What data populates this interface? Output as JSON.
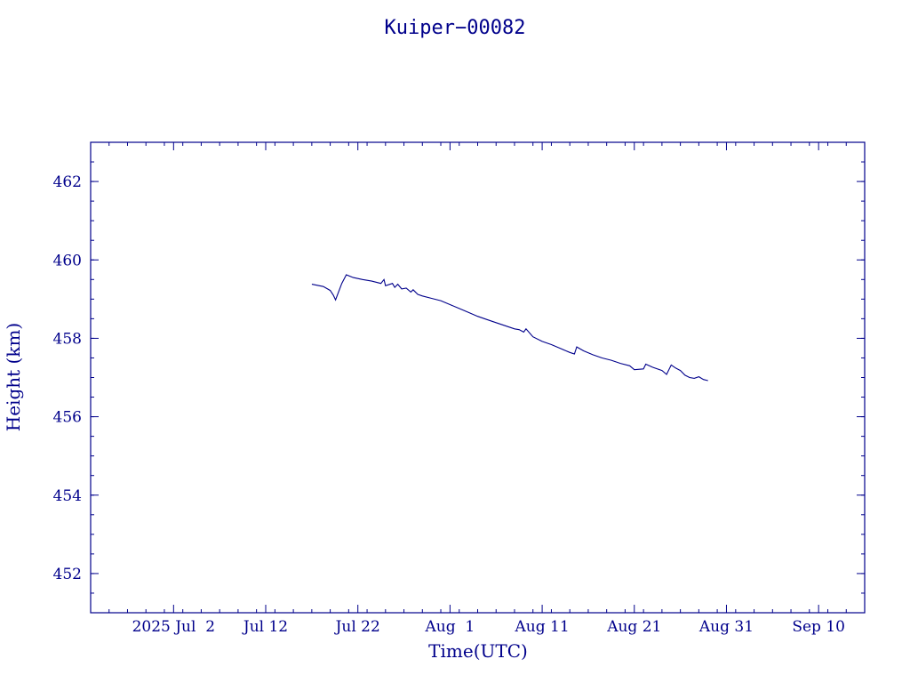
{
  "chart_data": {
    "type": "line",
    "title": "Kuiper−00082",
    "xlabel": "Time(UTC)",
    "ylabel": "Height (km)",
    "x_axis_type": "date",
    "xlim": [
      "2025-06-23",
      "2025-09-15"
    ],
    "ylim": [
      451,
      463
    ],
    "x_tick_labels": [
      {
        "date": "2025-07-02",
        "label": "2025 Jul  2"
      },
      {
        "date": "2025-07-12",
        "label": "Jul 12"
      },
      {
        "date": "2025-07-22",
        "label": "Jul 22"
      },
      {
        "date": "2025-08-01",
        "label": "Aug  1"
      },
      {
        "date": "2025-08-11",
        "label": "Aug 11"
      },
      {
        "date": "2025-08-21",
        "label": "Aug 21"
      },
      {
        "date": "2025-08-31",
        "label": "Aug 31"
      },
      {
        "date": "2025-09-10",
        "label": "Sep 10"
      }
    ],
    "y_ticks": [
      452,
      454,
      456,
      458,
      460,
      462
    ],
    "grid": false,
    "line_color": "#00008b",
    "series": [
      {
        "x": [
          "2025-07-17T00:00",
          "2025-07-18T06:00",
          "2025-07-19T00:00",
          "2025-07-19T08:00",
          "2025-07-19T14:00",
          "2025-07-20T06:00",
          "2025-07-20T18:00",
          "2025-07-21T12:00",
          "2025-07-22T12:00",
          "2025-07-23T12:00",
          "2025-07-24T12:00",
          "2025-07-24T20:00",
          "2025-07-25T00:00",
          "2025-07-25T18:00",
          "2025-07-26T00:00",
          "2025-07-26T08:00",
          "2025-07-26T18:00",
          "2025-07-27T06:00",
          "2025-07-27T18:00",
          "2025-07-28T00:00",
          "2025-07-28T12:00",
          "2025-07-29T00:00",
          "2025-07-30T00:00",
          "2025-07-31T00:00",
          "2025-08-01T00:00",
          "2025-08-02T00:00",
          "2025-08-03T00:00",
          "2025-08-04T00:00",
          "2025-08-05T00:00",
          "2025-08-06T00:00",
          "2025-08-07T00:00",
          "2025-08-08T00:00",
          "2025-08-08T12:00",
          "2025-08-09T00:00",
          "2025-08-09T06:00",
          "2025-08-10T00:00",
          "2025-08-11T00:00",
          "2025-08-12T00:00",
          "2025-08-13T00:00",
          "2025-08-14T00:00",
          "2025-08-14T12:00",
          "2025-08-14T18:00",
          "2025-08-15T12:00",
          "2025-08-16T12:00",
          "2025-08-17T12:00",
          "2025-08-18T12:00",
          "2025-08-19T12:00",
          "2025-08-20T12:00",
          "2025-08-21T00:00",
          "2025-08-22T00:00",
          "2025-08-22T06:00",
          "2025-08-23T00:00",
          "2025-08-24T00:00",
          "2025-08-24T12:00",
          "2025-08-25T00:00",
          "2025-08-25T12:00",
          "2025-08-26T00:00",
          "2025-08-26T12:00",
          "2025-08-27T00:00",
          "2025-08-27T12:00",
          "2025-08-28T00:00",
          "2025-08-28T12:00",
          "2025-08-29T00:00"
        ],
        "y": [
          459.38,
          459.32,
          459.22,
          459.1,
          458.98,
          459.4,
          459.62,
          459.55,
          459.5,
          459.46,
          459.4,
          459.5,
          459.34,
          459.4,
          459.3,
          459.38,
          459.26,
          459.28,
          459.18,
          459.24,
          459.12,
          459.08,
          459.02,
          458.96,
          458.86,
          458.76,
          458.66,
          458.56,
          458.48,
          458.4,
          458.32,
          458.24,
          458.22,
          458.16,
          458.24,
          458.04,
          457.92,
          457.84,
          457.74,
          457.64,
          457.6,
          457.78,
          457.68,
          457.58,
          457.5,
          457.44,
          457.36,
          457.3,
          457.2,
          457.22,
          457.34,
          457.26,
          457.18,
          457.08,
          457.32,
          457.24,
          457.18,
          457.06,
          457.0,
          456.98,
          457.02,
          456.95,
          456.92
        ]
      }
    ]
  }
}
